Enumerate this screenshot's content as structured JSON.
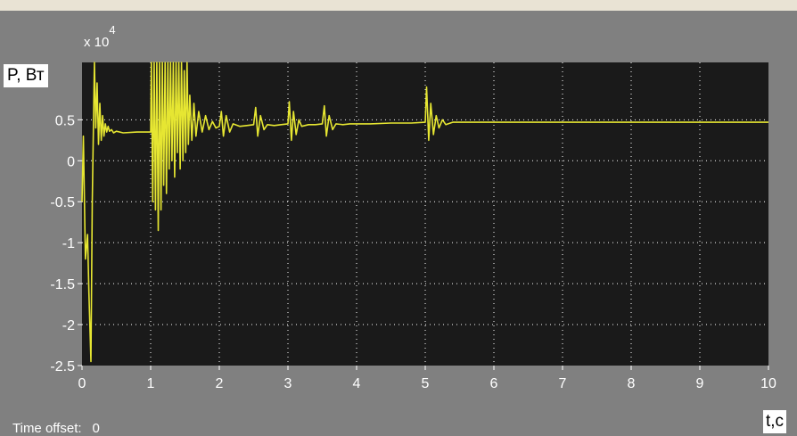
{
  "window": {
    "time_offset_label": "Time offset:",
    "time_offset_value": "0"
  },
  "colors": {
    "window_bg": "#808080",
    "plot_bg": "#1a1a1a",
    "trace": "#e6e632",
    "grid": "#ffffff"
  },
  "chart_data": {
    "type": "line",
    "title": "",
    "xlabel": "t,c",
    "ylabel": "P, Вт",
    "y_multiplier": "x 10",
    "y_multiplier_exp": "4",
    "xlim": [
      0,
      10
    ],
    "ylim": [
      -2.5,
      1.2
    ],
    "grid": true,
    "xticks": [
      "0",
      "1",
      "2",
      "3",
      "4",
      "5",
      "6",
      "7",
      "8",
      "9",
      "10"
    ],
    "yticks": [
      "0.5",
      "0",
      "-0.5",
      "-1",
      "-1.5",
      "-2",
      "-2.5"
    ],
    "series": [
      {
        "x": [
          0,
          0.02,
          0.05,
          0.08,
          0.1,
          0.13,
          0.15,
          0.18,
          0.2,
          0.22,
          0.24,
          0.26,
          0.28,
          0.3,
          0.32,
          0.34,
          0.36,
          0.38,
          0.4,
          0.43,
          0.46,
          0.5,
          0.6,
          0.8,
          1.0,
          1.01,
          1.03,
          1.05,
          1.07,
          1.09,
          1.11,
          1.13,
          1.15,
          1.17,
          1.19,
          1.21,
          1.23,
          1.25,
          1.27,
          1.29,
          1.31,
          1.33,
          1.35,
          1.37,
          1.39,
          1.41,
          1.43,
          1.45,
          1.47,
          1.49,
          1.51,
          1.53,
          1.55,
          1.57,
          1.6,
          1.63,
          1.66,
          1.7,
          1.75,
          1.8,
          1.85,
          1.9,
          1.95,
          2.0,
          2.03,
          2.06,
          2.1,
          2.15,
          2.2,
          2.3,
          2.4,
          2.5,
          2.53,
          2.56,
          2.6,
          2.65,
          2.7,
          2.8,
          2.9,
          3.0,
          3.02,
          3.05,
          3.08,
          3.12,
          3.16,
          3.2,
          3.3,
          3.4,
          3.5,
          3.53,
          3.56,
          3.6,
          3.65,
          3.7,
          3.8,
          3.9,
          4.0,
          4.2,
          4.5,
          4.8,
          5.0,
          5.02,
          5.05,
          5.08,
          5.12,
          5.16,
          5.2,
          5.25,
          5.3,
          5.4,
          5.5,
          6.0,
          7.0,
          8.0,
          9.0,
          10.0
        ],
        "y": [
          -0.5,
          0.3,
          -1.2,
          -0.9,
          -1.6,
          -2.45,
          -0.5,
          1.3,
          0.4,
          0.95,
          0.2,
          0.7,
          0.25,
          0.55,
          0.3,
          0.45,
          0.35,
          0.42,
          0.36,
          0.38,
          0.34,
          0.36,
          0.34,
          0.35,
          0.35,
          1.3,
          -0.5,
          1.3,
          -0.6,
          1.3,
          -0.85,
          1.2,
          -0.6,
          1.3,
          -0.3,
          1.3,
          -0.4,
          1.25,
          -0.1,
          1.3,
          0.0,
          1.3,
          -0.2,
          1.2,
          0.1,
          1.3,
          -0.1,
          1.3,
          0.0,
          1.1,
          0.1,
          1.3,
          0.2,
          0.8,
          0.25,
          0.7,
          0.3,
          0.6,
          0.35,
          0.55,
          0.38,
          0.48,
          0.4,
          0.42,
          0.6,
          0.3,
          0.55,
          0.35,
          0.45,
          0.42,
          0.43,
          0.44,
          0.65,
          0.3,
          0.55,
          0.38,
          0.44,
          0.43,
          0.44,
          0.45,
          0.72,
          0.25,
          0.6,
          0.32,
          0.5,
          0.42,
          0.44,
          0.44,
          0.45,
          0.67,
          0.3,
          0.55,
          0.38,
          0.45,
          0.44,
          0.45,
          0.45,
          0.45,
          0.46,
          0.46,
          0.47,
          0.9,
          0.25,
          0.7,
          0.32,
          0.55,
          0.4,
          0.5,
          0.44,
          0.47,
          0.47,
          0.47,
          0.47,
          0.47,
          0.47,
          0.47
        ]
      }
    ]
  }
}
